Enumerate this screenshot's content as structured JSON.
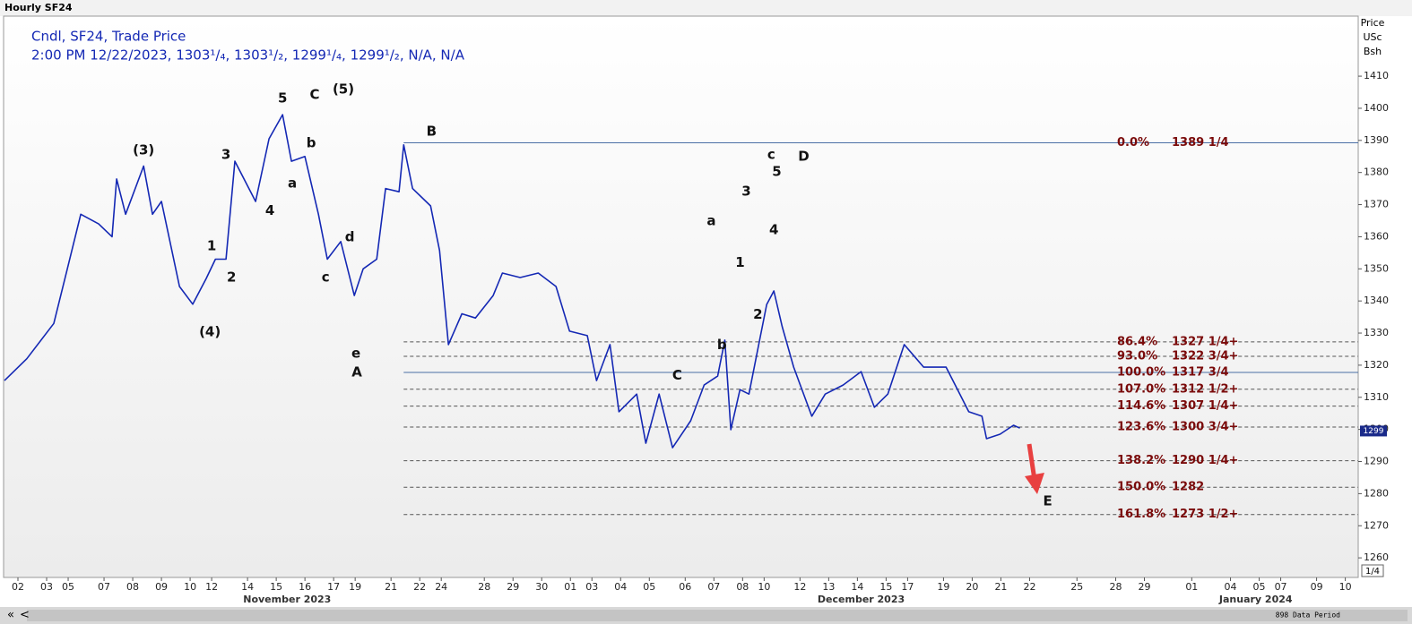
{
  "chart_data": {
    "type": "line",
    "window_title": "Hourly SF24",
    "legend_title": "Cndl, SF24, Trade Price",
    "legend_values": "2:00 PM 12/22/2023, 1303¹/₄, 1303¹/₂, 1299¹/₄, 1299¹/₂, N/A, N/A",
    "y_axis_label": [
      "Price",
      "USc",
      "Bsh"
    ],
    "x": [
      0.03,
      0.81,
      1.75,
      2.22,
      2.69,
      3.31,
      3.78,
      3.94,
      4.25,
      4.88,
      5.19,
      5.5,
      6.13,
      6.59,
      7.06,
      7.38,
      7.75,
      8.06,
      8.78,
      9.25,
      9.72,
      10.03,
      10.5,
      10.97,
      11.28,
      11.75,
      12.22,
      12.53,
      13,
      13.31,
      13.78,
      13.94,
      14.25,
      14.88,
      15.19,
      15.5,
      15.97,
      16.44,
      17.06,
      17.38,
      18,
      18.63,
      19.25,
      19.72,
      20.34,
      20.66,
      21.13,
      21.44,
      22.06,
      22.38,
      22.84,
      23.31,
      23.94,
      24.41,
      24.88,
      25.13,
      25.34,
      25.66,
      25.97,
      26.28,
      26.59,
      26.84,
      27.13,
      27.53,
      28.16,
      28.63,
      29.25,
      29.88,
      30.34,
      30.81,
      31.38,
      32.06,
      32.84,
      33.16,
      33.63,
      34.09,
      34.25,
      34.72,
      35.19,
      35.41
    ],
    "series": [
      {
        "name": "SF24",
        "color": "#1428b4",
        "values": [
          1315.2,
          1322,
          1333,
          1350,
          1367,
          1364,
          1360,
          1378,
          1367,
          1382,
          1367,
          1371,
          1344.5,
          1339,
          1347,
          1353,
          1353,
          1383.5,
          1371,
          1390.5,
          1398,
          1383.5,
          1385,
          1367,
          1353,
          1358.5,
          1341.7,
          1350,
          1353,
          1375,
          1374,
          1388.6,
          1375,
          1369.6,
          1355.7,
          1326.4,
          1336,
          1334.7,
          1341.7,
          1348.7,
          1347.3,
          1348.7,
          1344.5,
          1330.6,
          1329.2,
          1315.2,
          1326.4,
          1305.5,
          1311,
          1295.7,
          1311,
          1294.3,
          1302.7,
          1313.8,
          1316.6,
          1327.8,
          1299.9,
          1312.4,
          1311,
          1325,
          1338.9,
          1343.1,
          1332,
          1319.4,
          1304.1,
          1311,
          1313.8,
          1318,
          1306.9,
          1311,
          1326.4,
          1319.4,
          1319.4,
          1313.8,
          1305.5,
          1304.1,
          1297.1,
          1298.5,
          1301.3,
          1300.4
        ]
      }
    ],
    "xlim": [
      0,
      47.2
    ],
    "xticks": [
      {
        "value": 0.5,
        "label": "02"
      },
      {
        "value": 1.5,
        "label": "03"
      },
      {
        "value": 2.25,
        "label": "05"
      },
      {
        "value": 3.5,
        "label": "07"
      },
      {
        "value": 4.5,
        "label": "08"
      },
      {
        "value": 5.5,
        "label": "09"
      },
      {
        "value": 6.5,
        "label": "10"
      },
      {
        "value": 7.25,
        "label": "12"
      },
      {
        "value": 8.5,
        "label": "14"
      },
      {
        "value": 9.5,
        "label": "15"
      },
      {
        "value": 10.5,
        "label": "16"
      },
      {
        "value": 11.5,
        "label": "17"
      },
      {
        "value": 12.25,
        "label": "19"
      },
      {
        "value": 13.5,
        "label": "21"
      },
      {
        "value": 14.5,
        "label": "22"
      },
      {
        "value": 15.25,
        "label": "24"
      },
      {
        "value": 16.75,
        "label": "28"
      },
      {
        "value": 17.75,
        "label": "29"
      },
      {
        "value": 18.75,
        "label": "30"
      },
      {
        "value": 19.75,
        "label": "01"
      },
      {
        "value": 20.5,
        "label": "03"
      },
      {
        "value": 21.5,
        "label": "04"
      },
      {
        "value": 22.5,
        "label": "05"
      },
      {
        "value": 23.75,
        "label": "06"
      },
      {
        "value": 24.75,
        "label": "07"
      },
      {
        "value": 25.75,
        "label": "08"
      },
      {
        "value": 26.5,
        "label": "10"
      },
      {
        "value": 27.75,
        "label": "12"
      },
      {
        "value": 28.75,
        "label": "13"
      },
      {
        "value": 29.75,
        "label": "14"
      },
      {
        "value": 30.75,
        "label": "15"
      },
      {
        "value": 31.5,
        "label": "17"
      },
      {
        "value": 32.75,
        "label": "19"
      },
      {
        "value": 33.75,
        "label": "20"
      },
      {
        "value": 34.75,
        "label": "21"
      },
      {
        "value": 35.75,
        "label": "22"
      },
      {
        "value": 37.4,
        "label": "25"
      },
      {
        "value": 38.75,
        "label": "28"
      },
      {
        "value": 39.75,
        "label": "29"
      },
      {
        "value": 41.4,
        "label": "01"
      },
      {
        "value": 42.75,
        "label": "04"
      },
      {
        "value": 43.75,
        "label": "05"
      },
      {
        "value": 44.5,
        "label": "07"
      },
      {
        "value": 45.75,
        "label": "09"
      },
      {
        "value": 46.75,
        "label": "10"
      }
    ],
    "months": [
      {
        "label": "November 2023",
        "x": 9.88
      },
      {
        "label": "December 2023",
        "x": 29.88
      },
      {
        "label": "January 2024",
        "x": 43.63
      }
    ],
    "ylim": [
      1253.9,
      1428.7
    ],
    "yticks": [
      1260,
      1270,
      1280,
      1290,
      1300,
      1310,
      1320,
      1330,
      1340,
      1350,
      1360,
      1370,
      1380,
      1390,
      1400,
      1410
    ],
    "last_price": 1299.5,
    "last_price_label": "1299",
    "fib_start_x": 13.94,
    "fib_levels": [
      {
        "ratio": "0.0%",
        "label": "1389 1/4",
        "value": 1389.25,
        "solid": true
      },
      {
        "ratio": "86.4%",
        "label": "1327 1/4+",
        "value": 1327.25,
        "solid": false
      },
      {
        "ratio": "93.0%",
        "label": "1322 3/4+",
        "value": 1322.75,
        "solid": false
      },
      {
        "ratio": "100.0%",
        "label": "1317 3/4",
        "value": 1317.75,
        "solid": true
      },
      {
        "ratio": "107.0%",
        "label": "1312 1/2+",
        "value": 1312.5,
        "solid": false
      },
      {
        "ratio": "114.6%",
        "label": "1307 1/4+",
        "value": 1307.25,
        "solid": false
      },
      {
        "ratio": "123.6%",
        "label": "1300 3/4+",
        "value": 1300.75,
        "solid": false
      },
      {
        "ratio": "138.2%",
        "label": "1290 1/4+",
        "value": 1290.25,
        "solid": false
      },
      {
        "ratio": "150.0%",
        "label": "1282",
        "value": 1282,
        "solid": false
      },
      {
        "ratio": "161.8%",
        "label": "1273 1/2+",
        "value": 1273.5,
        "solid": false
      }
    ],
    "annotations": [
      {
        "text": "(3)",
        "x": 4.88,
        "y": 1386.9
      },
      {
        "text": "3",
        "x": 7.75,
        "y": 1385.5
      },
      {
        "text": "5",
        "x": 9.72,
        "y": 1403.1
      },
      {
        "text": "C",
        "x": 10.84,
        "y": 1404.2
      },
      {
        "text": "(5)",
        "x": 11.84,
        "y": 1405.9
      },
      {
        "text": "b",
        "x": 10.72,
        "y": 1389.1
      },
      {
        "text": "a",
        "x": 10.06,
        "y": 1376.6
      },
      {
        "text": "4",
        "x": 9.28,
        "y": 1368
      },
      {
        "text": "1",
        "x": 7.25,
        "y": 1357.1
      },
      {
        "text": "2",
        "x": 7.94,
        "y": 1347.3
      },
      {
        "text": "(4)",
        "x": 7.19,
        "y": 1330.3
      },
      {
        "text": "d",
        "x": 12.06,
        "y": 1359.9
      },
      {
        "text": "c",
        "x": 11.22,
        "y": 1347.3
      },
      {
        "text": "e",
        "x": 12.28,
        "y": 1323.6
      },
      {
        "text": "A",
        "x": 12.31,
        "y": 1317.7
      },
      {
        "text": "B",
        "x": 14.91,
        "y": 1392.8
      },
      {
        "text": "c",
        "x": 26.75,
        "y": 1385.5
      },
      {
        "text": "D",
        "x": 27.88,
        "y": 1384.9
      },
      {
        "text": "5",
        "x": 26.94,
        "y": 1380.2
      },
      {
        "text": "3",
        "x": 25.88,
        "y": 1374.1
      },
      {
        "text": "4",
        "x": 26.84,
        "y": 1362.1
      },
      {
        "text": "a",
        "x": 24.66,
        "y": 1364.9
      },
      {
        "text": "1",
        "x": 25.66,
        "y": 1351.9
      },
      {
        "text": "2",
        "x": 26.28,
        "y": 1335.7
      },
      {
        "text": "b",
        "x": 25.03,
        "y": 1326.2
      },
      {
        "text": "C",
        "x": 23.47,
        "y": 1316.7
      },
      {
        "text": "E",
        "x": 36.38,
        "y": 1277.6
      }
    ],
    "scale_button": "1/4",
    "scroll_label": "898 Data Period",
    "scroll_buttons": [
      "«",
      "<"
    ]
  }
}
